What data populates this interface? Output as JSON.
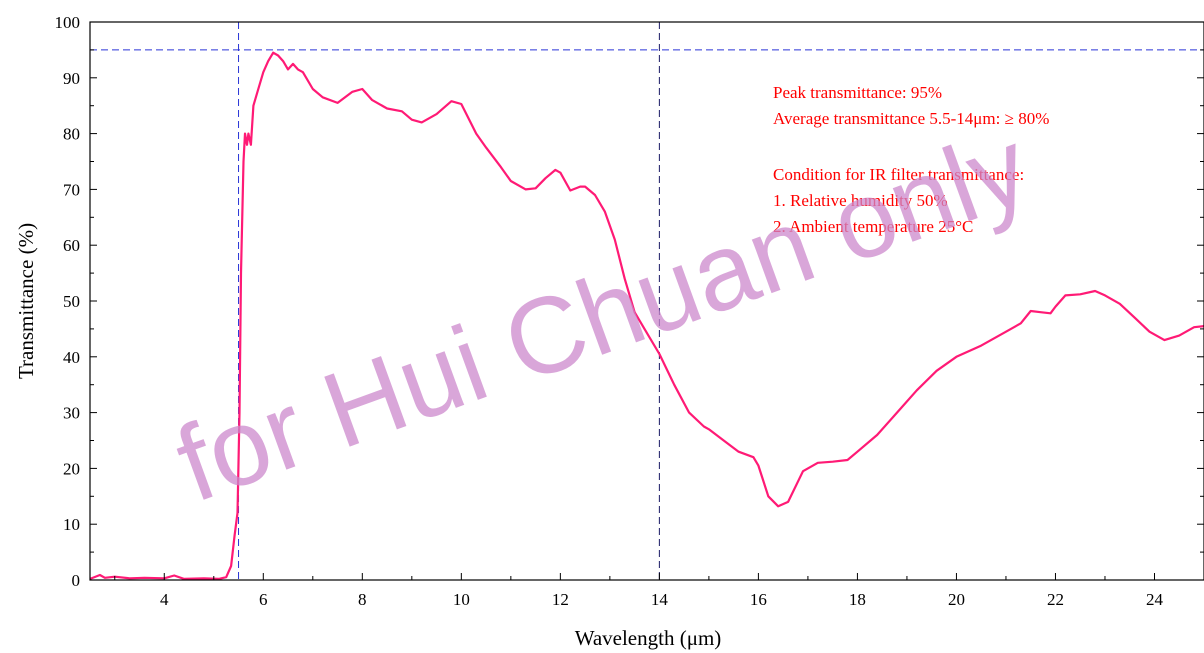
{
  "chart_data": {
    "type": "line",
    "xlabel": "Wavelength (μm)",
    "ylabel": "Transmittance (%)",
    "xlim": [
      2.5,
      25
    ],
    "ylim": [
      0,
      100
    ],
    "x_ticks": [
      4,
      6,
      8,
      10,
      12,
      14,
      16,
      18,
      20,
      22,
      24
    ],
    "y_ticks": [
      0,
      10,
      20,
      30,
      40,
      50,
      60,
      70,
      80,
      90,
      100
    ],
    "grid": false,
    "colors": {
      "line": "#ff1a75",
      "reference": "#2a35d6",
      "annotation": "#ff0000",
      "watermark": "#cc88cc"
    },
    "reference_lines": {
      "vertical": [
        5.5,
        14
      ],
      "horizontal": [
        95
      ]
    },
    "annotations": [
      "Peak transmittance: 95%",
      "Average transmittance 5.5-14μm: ≥  80%",
      "Condition for IR filter transmittance:",
      "1. Relative humidity 50%",
      "2. Ambient temperature 25°C"
    ],
    "watermark": "for Hui Chuan only",
    "series": [
      {
        "x": [
          2.5,
          2.7,
          2.8,
          3.0,
          3.3,
          3.6,
          4.0,
          4.2,
          4.4,
          4.8,
          5.1,
          5.25,
          5.35,
          5.42,
          5.48,
          5.52,
          5.55,
          5.6,
          5.63,
          5.67,
          5.7,
          5.75,
          5.8,
          5.9,
          6.0,
          6.1,
          6.2,
          6.3,
          6.4,
          6.5,
          6.6,
          6.7,
          6.8,
          7.0,
          7.2,
          7.5,
          7.8,
          8.0,
          8.2,
          8.5,
          8.8,
          9.0,
          9.2,
          9.5,
          9.8,
          10.0,
          10.3,
          10.5,
          10.8,
          11.0,
          11.3,
          11.5,
          11.7,
          11.9,
          12.0,
          12.2,
          12.4,
          12.5,
          12.7,
          12.9,
          13.1,
          13.3,
          13.5,
          13.7,
          14.0,
          14.3,
          14.6,
          14.9,
          15.0,
          15.3,
          15.6,
          15.9,
          16.0,
          16.2,
          16.4,
          16.6,
          16.9,
          17.2,
          17.5,
          17.8,
          18.0,
          18.4,
          18.8,
          19.2,
          19.6,
          20.0,
          20.5,
          21.0,
          21.3,
          21.5,
          21.7,
          21.9,
          22.0,
          22.2,
          22.5,
          22.8,
          23.0,
          23.3,
          23.6,
          23.9,
          24.2,
          24.5,
          24.8,
          25.0
        ],
        "y": [
          0.2,
          0.9,
          0.4,
          0.6,
          0.3,
          0.4,
          0.3,
          0.8,
          0.2,
          0.3,
          0.2,
          0.5,
          2.5,
          8.0,
          12.0,
          30.0,
          55.0,
          75.0,
          80.0,
          78.0,
          80.0,
          78.0,
          85.0,
          88.0,
          91.0,
          93.0,
          94.5,
          94.0,
          93.0,
          91.5,
          92.5,
          91.5,
          91.0,
          88.0,
          86.5,
          85.5,
          87.5,
          88.0,
          86.0,
          84.5,
          84.0,
          82.5,
          82.0,
          83.5,
          85.8,
          85.3,
          80.0,
          77.5,
          74.0,
          71.5,
          70.0,
          70.2,
          72.0,
          73.5,
          73.0,
          69.8,
          70.5,
          70.5,
          69.0,
          66.0,
          61.0,
          54.0,
          48.0,
          45.0,
          40.5,
          35.0,
          30.0,
          27.5,
          27.0,
          25.0,
          23.0,
          22.0,
          20.5,
          15.0,
          13.2,
          14.0,
          19.5,
          21.0,
          21.2,
          21.5,
          23.0,
          26.0,
          30.0,
          34.0,
          37.5,
          40.0,
          42.0,
          44.5,
          46.0,
          48.2,
          48.0,
          47.8,
          49.0,
          51.0,
          51.2,
          51.8,
          51.0,
          49.5,
          47.0,
          44.5,
          43.0,
          43.8,
          45.3,
          45.5
        ]
      }
    ]
  }
}
